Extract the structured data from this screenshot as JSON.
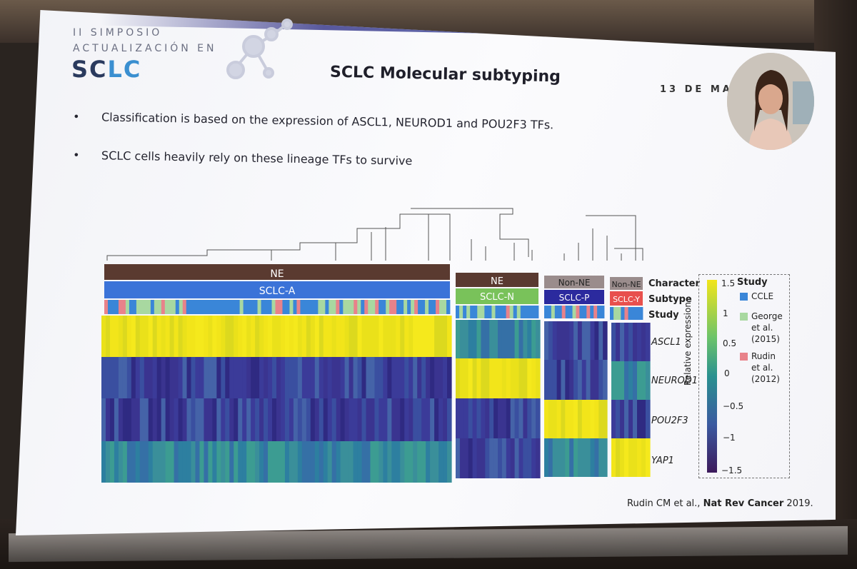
{
  "slide": {
    "logo_line1": "II SIMPOSIO",
    "logo_line2": "ACTUALIZACIÓN EN",
    "logo_main_a": "SC",
    "logo_main_b": "LC",
    "title": "SCLC Molecular subtyping",
    "date": "13 DE MAY",
    "bullets": [
      "Classification is based on the expression of ASCL1, NEUROD1 and POU2F3 TFs.",
      "SCLC cells heavily rely on these lineage TFs to survive"
    ],
    "citation_plain": "Rudin CM et al., ",
    "citation_bold": "Nat Rev Cancer",
    "citation_year": " 2019."
  },
  "figure": {
    "groups": [
      {
        "character": "NE",
        "subtype": "SCLC-A",
        "subtype_color": "#3b73d8"
      },
      {
        "character": "NE",
        "subtype": "SCLC-N",
        "subtype_color": "#79c25a"
      },
      {
        "character": "Non-NE",
        "subtype": "SCLC-P",
        "subtype_color": "#2b2a9e"
      },
      {
        "character": "Non-NE",
        "subtype": "SCLC-Y",
        "subtype_color": "#e8504d"
      }
    ],
    "row_labels": {
      "character": "Character",
      "subtype": "Subtype",
      "study": "Study"
    },
    "genes": [
      "ASCL1",
      "NEUROD1",
      "POU2F3",
      "YAP1"
    ],
    "legend": {
      "colorbar_label": "Relative expression",
      "ticks": [
        "1.5",
        "1",
        "0.5",
        "0",
        "−0.5",
        "−1",
        "−1.5"
      ],
      "study_title": "Study",
      "studies": [
        {
          "name": "CCLE",
          "color": "#3a86d8"
        },
        {
          "name": "George et al. (2015)",
          "color": "#a8d8a0"
        },
        {
          "name": "Rudin et al. (2012)",
          "color": "#e8828a"
        }
      ]
    },
    "colors": {
      "high": "#f2e51a",
      "mid": "#3a8f9a",
      "low": "#3b3b99",
      "character_bar": "#5a3a30",
      "character_bar_light": "#9a8c8c"
    }
  }
}
